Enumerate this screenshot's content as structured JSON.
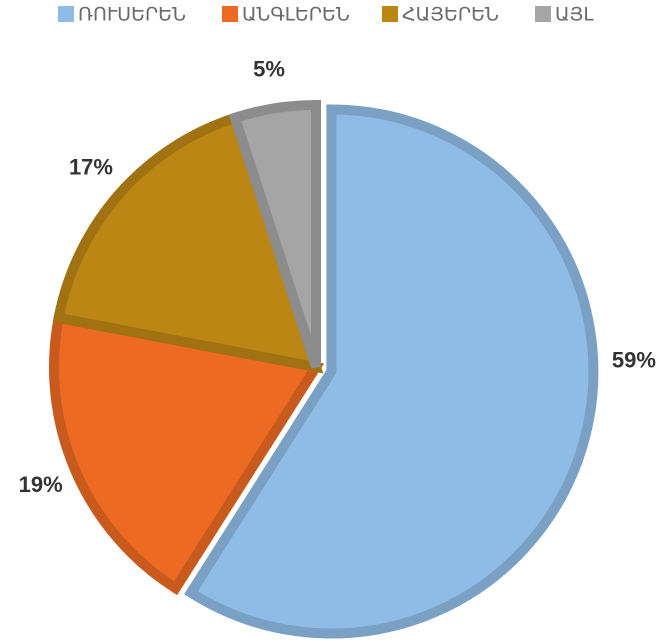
{
  "chart_data": {
    "type": "pie",
    "categories": [
      "ՌՈՒՍԵՐԵՆ",
      "ԱՆԳԼԵՐԵՆ",
      "ՀԱՅԵՐԵՆ",
      "ԱՅԼ"
    ],
    "values": [
      59,
      19,
      17,
      5
    ],
    "value_labels": [
      "59%",
      "19%",
      "17%",
      "5%"
    ],
    "colors": [
      "#8fbce6",
      "#ec6a22",
      "#bc8614",
      "#a5a5a5"
    ],
    "legend": "top"
  }
}
